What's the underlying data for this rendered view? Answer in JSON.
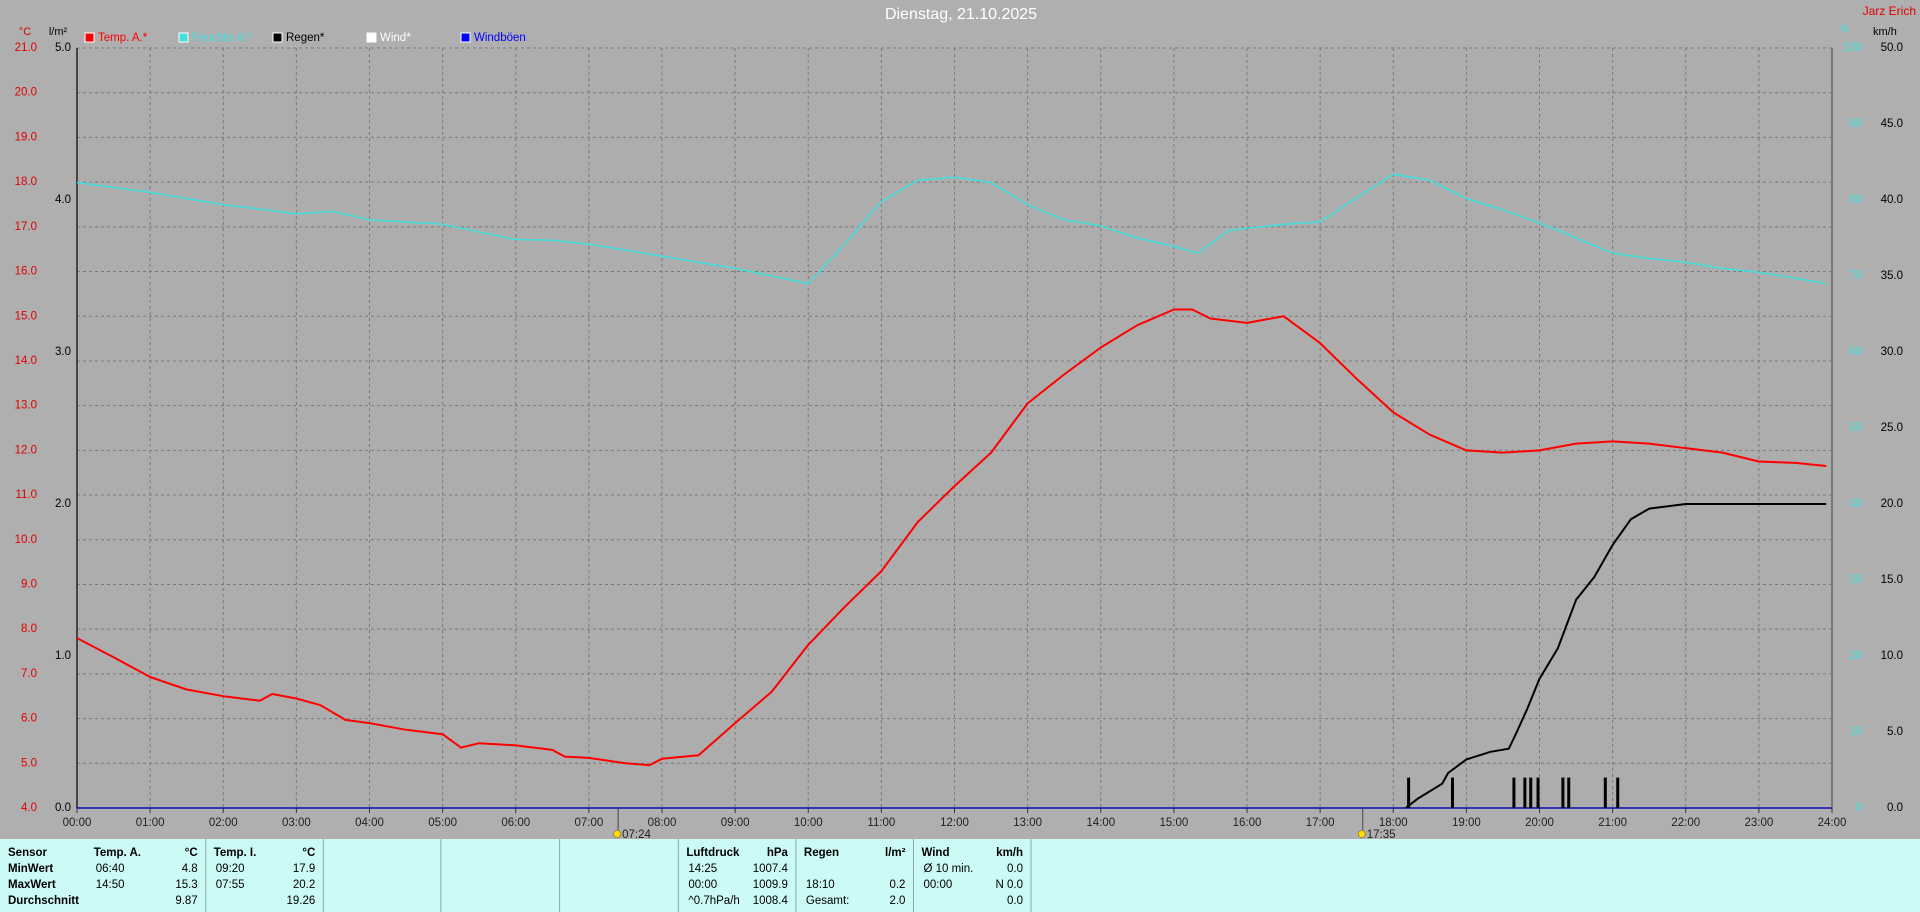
{
  "header": {
    "user": "Jarz Erich"
  },
  "chart_data": {
    "type": "line",
    "title": "Dienstag, 21.10.2025",
    "grid": true,
    "xlim": [
      0,
      24
    ],
    "xticks": [
      {
        "value": 0,
        "label": "00:00"
      },
      {
        "value": 1,
        "label": "01:00"
      },
      {
        "value": 2,
        "label": "02:00"
      },
      {
        "value": 3,
        "label": "03:00"
      },
      {
        "value": 4,
        "label": "04:00"
      },
      {
        "value": 5,
        "label": "05:00"
      },
      {
        "value": 6,
        "label": "06:00"
      },
      {
        "value": 7,
        "label": "07:00"
      },
      {
        "value": 8,
        "label": "08:00"
      },
      {
        "value": 9,
        "label": "09:00"
      },
      {
        "value": 10,
        "label": "10:00"
      },
      {
        "value": 11,
        "label": "11:00"
      },
      {
        "value": 12,
        "label": "12:00"
      },
      {
        "value": 13,
        "label": "13:00"
      },
      {
        "value": 14,
        "label": "14:00"
      },
      {
        "value": 15,
        "label": "15:00"
      },
      {
        "value": 16,
        "label": "16:00"
      },
      {
        "value": 17,
        "label": "17:00"
      },
      {
        "value": 18,
        "label": "18:00"
      },
      {
        "value": 19,
        "label": "19:00"
      },
      {
        "value": 20,
        "label": "20:00"
      },
      {
        "value": 21,
        "label": "21:00"
      },
      {
        "value": 22,
        "label": "22:00"
      },
      {
        "value": 23,
        "label": "23:00"
      },
      {
        "value": 24,
        "label": "24:00"
      }
    ],
    "axes": [
      {
        "unit": "°C",
        "color": "#e00000",
        "lim": [
          4,
          21
        ],
        "ticks": [
          {
            "value": 4,
            "label": "4.0"
          },
          {
            "value": 5,
            "label": "5.0"
          },
          {
            "value": 6,
            "label": "6.0"
          },
          {
            "value": 7,
            "label": "7.0"
          },
          {
            "value": 8,
            "label": "8.0"
          },
          {
            "value": 9,
            "label": "9.0"
          },
          {
            "value": 10,
            "label": "10.0"
          },
          {
            "value": 11,
            "label": "11.0"
          },
          {
            "value": 12,
            "label": "12.0"
          },
          {
            "value": 13,
            "label": "13.0"
          },
          {
            "value": 14,
            "label": "14.0"
          },
          {
            "value": 15,
            "label": "15.0"
          },
          {
            "value": 16,
            "label": "16.0"
          },
          {
            "value": 17,
            "label": "17.0"
          },
          {
            "value": 18,
            "label": "18.0"
          },
          {
            "value": 19,
            "label": "19.0"
          },
          {
            "value": 20,
            "label": "20.0"
          },
          {
            "value": 21,
            "label": "21.0"
          }
        ]
      },
      {
        "unit": "l/m²",
        "color": "#000000",
        "lim": [
          0,
          5
        ],
        "ticks": [
          {
            "value": 0,
            "label": "0.0"
          },
          {
            "value": 1,
            "label": "1.0"
          },
          {
            "value": 2,
            "label": "2.0"
          },
          {
            "value": 3,
            "label": "3.0"
          },
          {
            "value": 4,
            "label": "4.0"
          },
          {
            "value": 5,
            "label": "5.0"
          }
        ]
      },
      {
        "unit": "%",
        "color": "#40e0e0",
        "lim": [
          0,
          100
        ],
        "ticks": [
          0,
          10,
          20,
          30,
          40,
          50,
          60,
          70,
          80,
          90,
          100
        ]
      },
      {
        "unit": "km/h",
        "color": "#000000",
        "lim": [
          0,
          50
        ],
        "ticks": [
          {
            "value": 0,
            "label": "0.0"
          },
          {
            "value": 5,
            "label": "5.0"
          },
          {
            "value": 10,
            "label": "10.0"
          },
          {
            "value": 15,
            "label": "15.0"
          },
          {
            "value": 20,
            "label": "20.0"
          },
          {
            "value": 25,
            "label": "25.0"
          },
          {
            "value": 30,
            "label": "30.0"
          },
          {
            "value": 35,
            "label": "35.0"
          },
          {
            "value": 40,
            "label": "40.0"
          },
          {
            "value": 45,
            "label": "45.0"
          },
          {
            "value": 50,
            "label": "50.0"
          }
        ]
      }
    ],
    "series": [
      {
        "name": "Temp. A.*",
        "color": "#ff0000",
        "axis": 0,
        "type": "line",
        "width": 2,
        "x": [
          0,
          0.5,
          1,
          1.5,
          2,
          2.5,
          2.67,
          3,
          3.33,
          3.67,
          4,
          4.5,
          5,
          5.25,
          5.5,
          6,
          6.5,
          6.67,
          7,
          7.5,
          7.83,
          8,
          8.5,
          9,
          9.5,
          10,
          10.5,
          11,
          11.5,
          12,
          12.5,
          13,
          13.5,
          14,
          14.5,
          15,
          15.25,
          15.5,
          16,
          16.5,
          17,
          17.5,
          18,
          18.5,
          19,
          19.5,
          20,
          20.5,
          21,
          21.5,
          22,
          22.5,
          23,
          23.5,
          23.92
        ],
        "values": [
          7.8,
          7.37,
          6.93,
          6.65,
          6.5,
          6.4,
          6.55,
          6.45,
          6.3,
          5.97,
          5.9,
          5.75,
          5.65,
          5.35,
          5.45,
          5.4,
          5.3,
          5.15,
          5.12,
          5.0,
          4.96,
          5.1,
          5.18,
          5.9,
          6.6,
          7.65,
          8.5,
          9.3,
          10.4,
          11.2,
          11.95,
          13.05,
          13.7,
          14.3,
          14.8,
          15.15,
          15.15,
          14.95,
          14.85,
          15.0,
          14.4,
          13.6,
          12.85,
          12.35,
          12.0,
          11.95,
          12.0,
          12.15,
          12.2,
          12.15,
          12.05,
          11.95,
          11.75,
          11.72,
          11.65
        ]
      },
      {
        "name": "Feuchte A.*",
        "color": "#40e0e0",
        "axis": 2,
        "type": "line",
        "width": 1.5,
        "x": [
          0,
          1,
          2,
          3,
          3.5,
          4,
          5,
          6,
          6.5,
          7,
          8,
          9,
          10,
          10.5,
          11,
          11.5,
          12,
          12.5,
          13,
          13.5,
          14,
          14.5,
          15,
          15.33,
          15.75,
          16.5,
          17,
          17.5,
          18,
          18.5,
          19,
          19.5,
          20,
          20.5,
          21,
          21.5,
          22,
          22.5,
          23,
          23.5,
          23.92
        ],
        "values": [
          82.3,
          81,
          79.4,
          78.2,
          78.5,
          77.4,
          76.8,
          74.8,
          74.7,
          74.2,
          72.6,
          71,
          69,
          74.2,
          79.8,
          82.6,
          83,
          82.3,
          79.4,
          77.4,
          76.6,
          75,
          73.9,
          73,
          76,
          76.8,
          77.1,
          80.3,
          83.4,
          82.6,
          80.2,
          78.7,
          77,
          75,
          73,
          72.3,
          71.8,
          71,
          70.5,
          69.7,
          69
        ]
      },
      {
        "name": "Regen*",
        "color": "#000000",
        "axis": 1,
        "type": "line",
        "width": 2,
        "x": [
          18.17,
          18.33,
          18.67,
          18.75,
          19,
          19.33,
          19.58,
          19.67,
          19.83,
          20,
          20.25,
          20.5,
          20.75,
          21,
          21.25,
          21.5,
          22,
          23.92
        ],
        "values": [
          0,
          0.06,
          0.16,
          0.23,
          0.32,
          0.37,
          0.39,
          0.48,
          0.65,
          0.85,
          1.05,
          1.37,
          1.52,
          1.73,
          1.9,
          1.97,
          2.0,
          2.0
        ]
      },
      {
        "color": "#000000",
        "axis": 1,
        "type": "bar",
        "x": [
          18.21,
          18.81,
          19.65,
          19.8,
          19.88,
          19.98,
          20.32,
          20.4,
          20.9,
          21.07
        ],
        "values": [
          0.2,
          0.2,
          0.2,
          0.2,
          0.2,
          0.2,
          0.2,
          0.2,
          0.2,
          0.2
        ]
      },
      {
        "name": "Wind*",
        "color": "#ffffff",
        "axis": 3,
        "type": "line",
        "width": 1,
        "x": [
          0,
          24
        ],
        "values": [
          0,
          0
        ]
      },
      {
        "name": "Windböen",
        "color": "#0000ff",
        "axis": 3,
        "type": "line",
        "width": 1,
        "x": [
          0,
          24
        ],
        "values": [
          0,
          0
        ]
      }
    ],
    "annotations": [
      {
        "x": 7.4,
        "label": "07:24"
      },
      {
        "x": 17.583,
        "label": "17:35"
      }
    ]
  },
  "stats": {
    "row_labels": [
      "Sensor",
      "MinWert",
      "MaxWert",
      "Durchschnitt"
    ],
    "columns": [
      {
        "title": "Temp. A.",
        "unit": "°C",
        "cells": [
          {
            "time": "06:40",
            "value": "4.8"
          },
          {
            "time": "14:50",
            "value": "15.3"
          },
          {
            "value": "9.87"
          }
        ]
      },
      {
        "title": "Temp. I.",
        "unit": "°C",
        "cells": [
          {
            "time": "09:20",
            "value": "17.9"
          },
          {
            "time": "07:55",
            "value": "20.2"
          },
          {
            "value": "19.26"
          }
        ]
      },
      {
        "title": "Luftdruck",
        "unit": "hPa",
        "cells": [
          {
            "time": "14:25",
            "value": "1007.4"
          },
          {
            "time": "00:00",
            "value": "1009.9"
          },
          {
            "time": "^0.7hPa/h",
            "value": "1008.4"
          }
        ]
      },
      {
        "title": "Regen",
        "unit": "l/m²",
        "cells": [
          null,
          {
            "time": "18:10",
            "value": "0.2"
          },
          {
            "time": "Gesamt:",
            "value": "2.0"
          }
        ]
      },
      {
        "title": "Wind",
        "unit": "km/h",
        "cells": [
          {
            "time": "Ø 10 min.",
            "value": "0.0"
          },
          {
            "time": "00:00",
            "value": "N 0.0"
          },
          {
            "value": "0.0"
          }
        ]
      }
    ]
  }
}
